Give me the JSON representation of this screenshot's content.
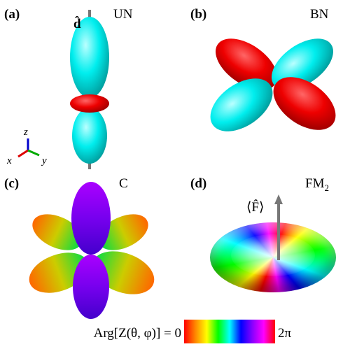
{
  "panels": [
    {
      "tag": "(a)",
      "label": "UN",
      "vector_label": "d̂",
      "axes": {
        "x": "x",
        "y": "y",
        "z": "z"
      }
    },
    {
      "tag": "(b)",
      "label": "BN"
    },
    {
      "tag": "(c)",
      "label": "C"
    },
    {
      "tag": "(d)",
      "label": "FM",
      "label_subscript": "2",
      "vector_label": "⟨F̂⟩"
    }
  ],
  "colorbar": {
    "label": "Arg[Z(θ, φ)] = 0",
    "end_label": "2π"
  }
}
